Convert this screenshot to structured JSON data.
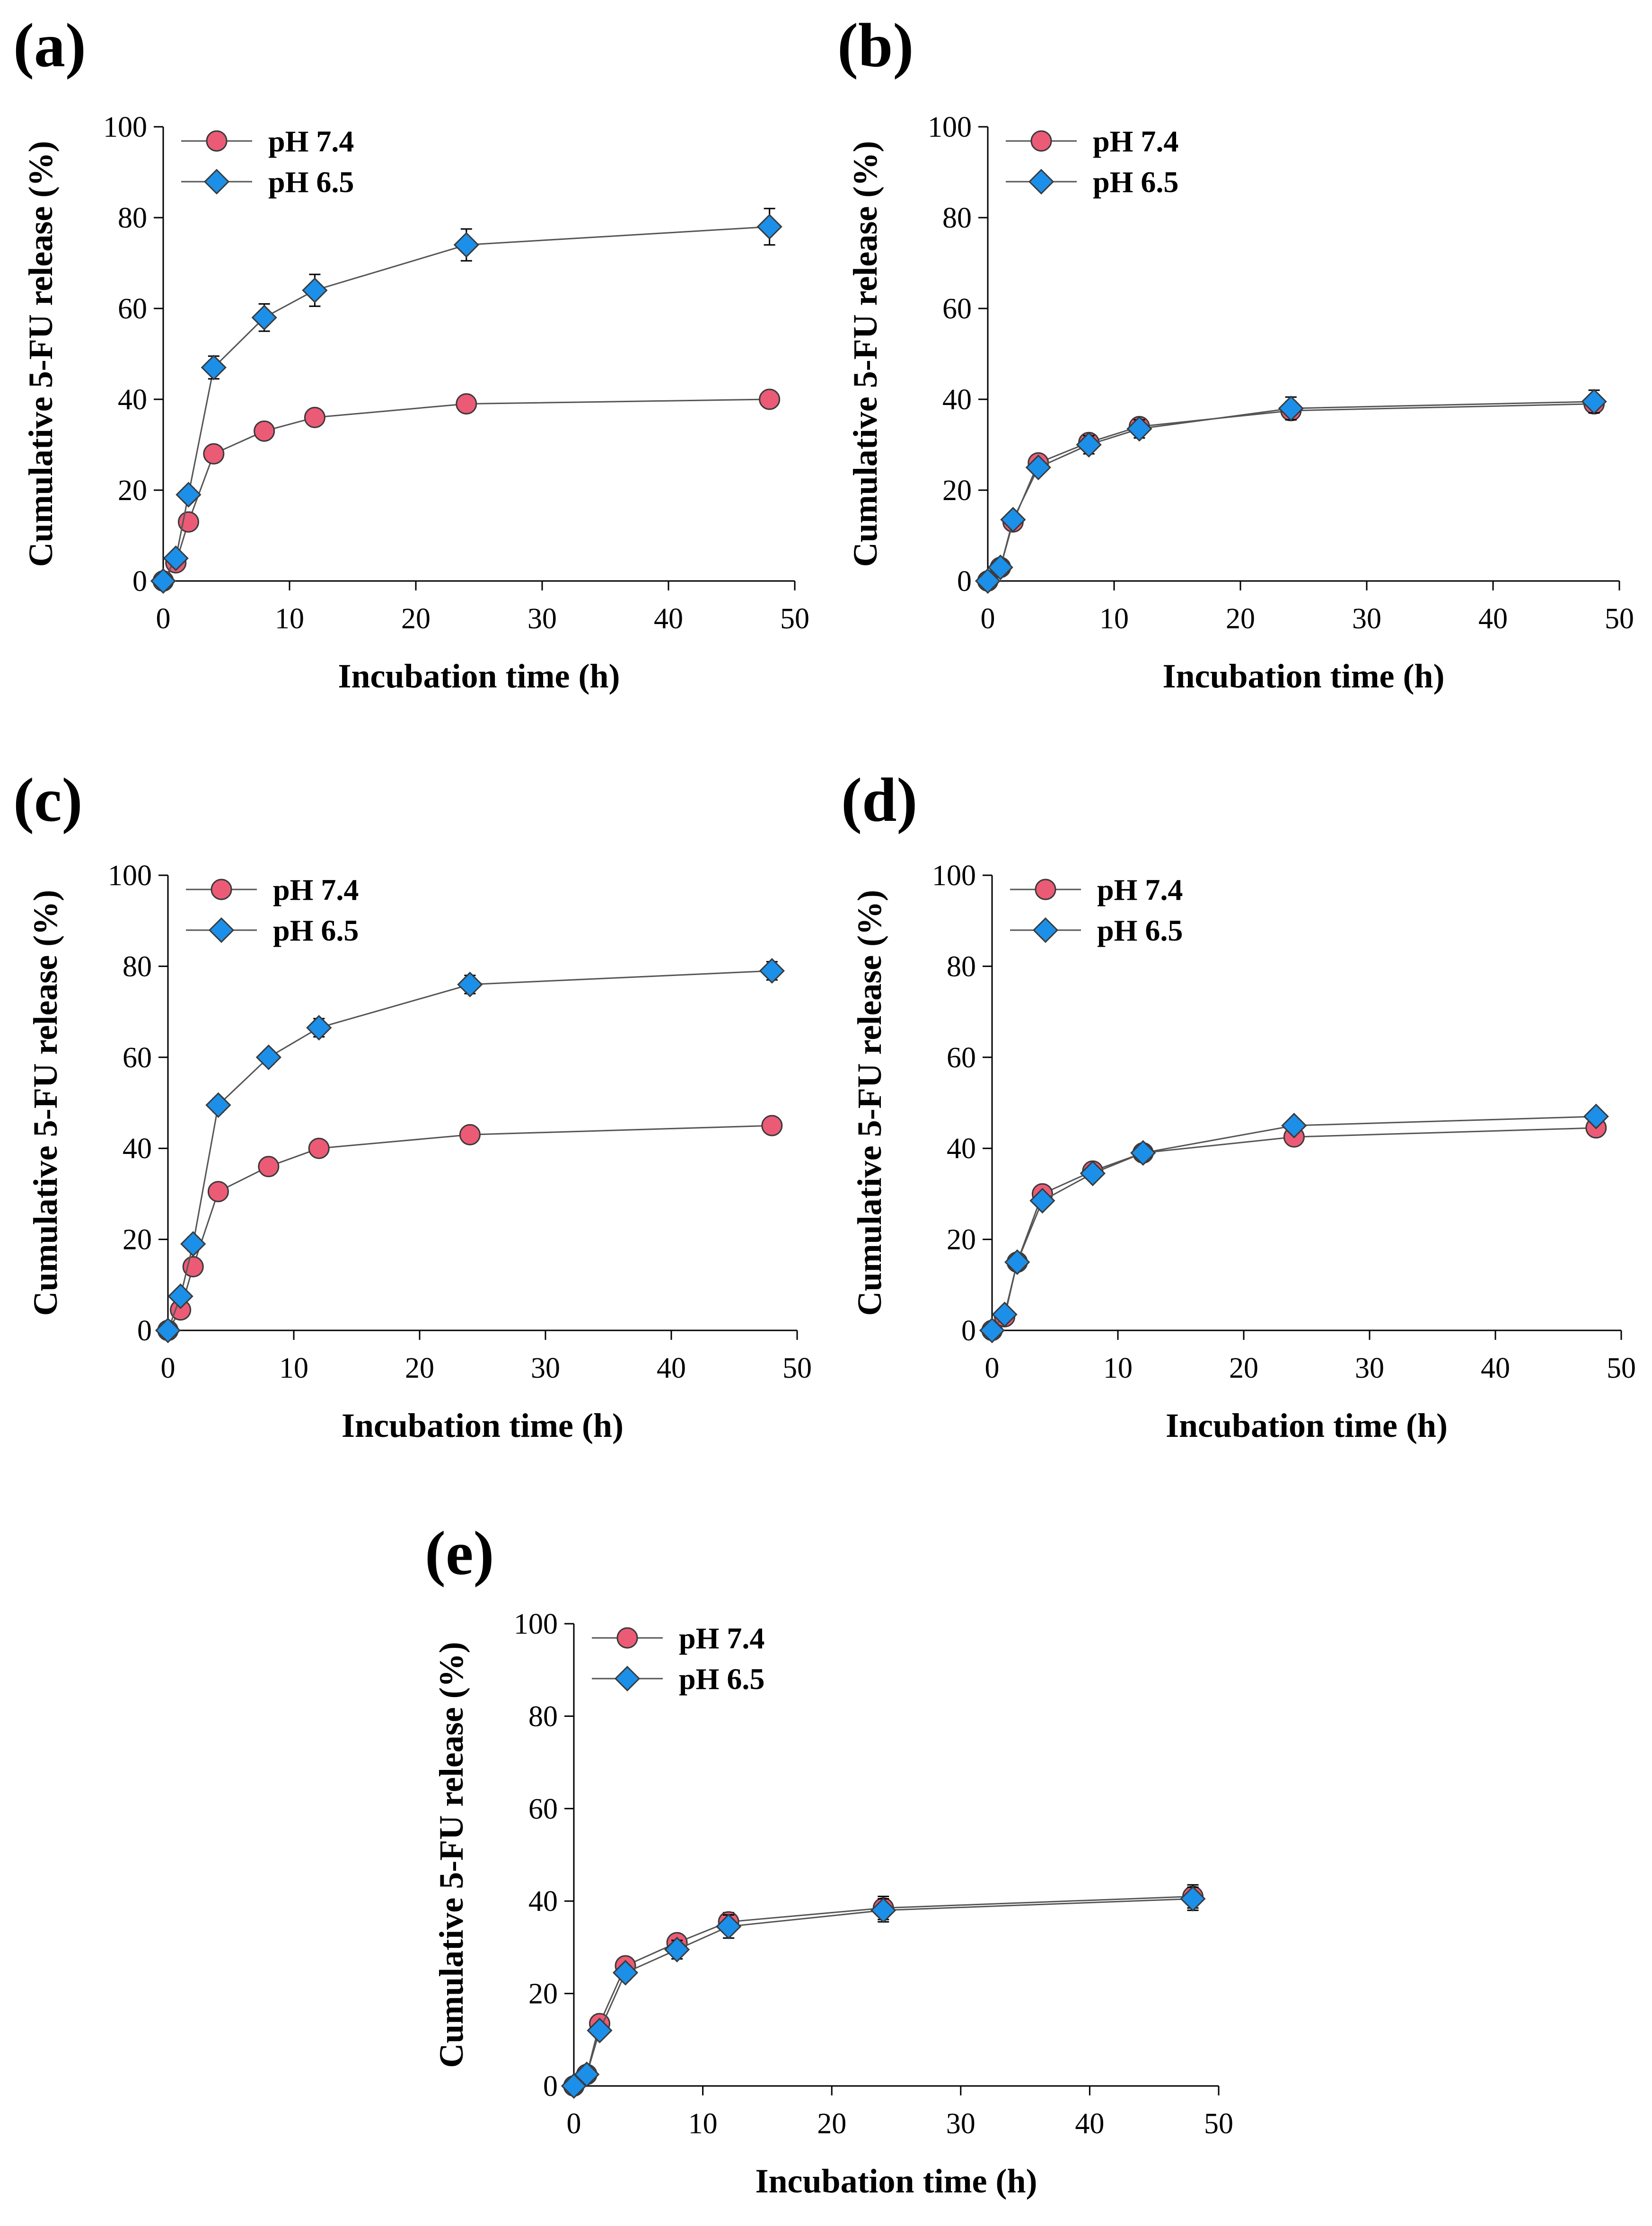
{
  "colors": {
    "ph74_fill": "#EC5B76",
    "ph65_fill": "#1C8FE8",
    "marker_stroke": "#3A3A3A",
    "line": "#555555",
    "axis": "#000000"
  },
  "chart_data": [
    {
      "panel": "(a)",
      "type": "line",
      "xlabel": "Incubation time (h)",
      "ylabel": "Cumulative 5-FU release (%)",
      "xlim": [
        0,
        50
      ],
      "ylim": [
        0,
        100
      ],
      "xticks": [
        "0",
        "10",
        "20",
        "30",
        "40",
        "50"
      ],
      "yticks": [
        "0",
        "20",
        "40",
        "60",
        "80",
        "100"
      ],
      "x": [
        0,
        1,
        2,
        4,
        8,
        12,
        24,
        48
      ],
      "legend_position": "top-left",
      "series": [
        {
          "name": "pH 7.4",
          "marker": "circle",
          "values": [
            0,
            4,
            13,
            28,
            33,
            36,
            39,
            40
          ],
          "errors": [
            0,
            0.8,
            1,
            1,
            1,
            1,
            1,
            1
          ]
        },
        {
          "name": "pH 6.5",
          "marker": "diamond",
          "values": [
            0,
            5,
            19,
            47,
            58,
            64,
            74,
            78
          ],
          "errors": [
            0,
            1,
            1.5,
            2.5,
            3,
            3.5,
            3.5,
            4
          ]
        }
      ]
    },
    {
      "panel": "(b)",
      "type": "line",
      "xlabel": "Incubation time (h)",
      "ylabel": "Cumulative 5-FU release (%)",
      "xlim": [
        0,
        50
      ],
      "ylim": [
        0,
        100
      ],
      "xticks": [
        "0",
        "10",
        "20",
        "30",
        "40",
        "50"
      ],
      "yticks": [
        "0",
        "20",
        "40",
        "60",
        "80",
        "100"
      ],
      "x": [
        0,
        1,
        2,
        4,
        8,
        12,
        24,
        48
      ],
      "legend_position": "top-left",
      "series": [
        {
          "name": "pH 7.4",
          "marker": "circle",
          "values": [
            0,
            3,
            13,
            26,
            30.5,
            34,
            37.5,
            39
          ],
          "errors": [
            0,
            0.8,
            1,
            1,
            1.5,
            1.5,
            2,
            2
          ]
        },
        {
          "name": "pH 6.5",
          "marker": "diamond",
          "values": [
            0,
            3,
            13.5,
            25,
            30,
            33.5,
            38,
            39.5
          ],
          "errors": [
            0,
            0.8,
            1,
            1,
            2,
            2,
            2.5,
            2.5
          ]
        }
      ]
    },
    {
      "panel": "(c)",
      "type": "line",
      "xlabel": "Incubation time (h)",
      "ylabel": "Cumulative 5-FU release (%)",
      "xlim": [
        0,
        50
      ],
      "ylim": [
        0,
        100
      ],
      "xticks": [
        "0",
        "10",
        "20",
        "30",
        "40",
        "50"
      ],
      "yticks": [
        "0",
        "20",
        "40",
        "60",
        "80",
        "100"
      ],
      "x": [
        0,
        1,
        2,
        4,
        8,
        12,
        24,
        48
      ],
      "legend_position": "top-left",
      "series": [
        {
          "name": "pH 7.4",
          "marker": "circle",
          "values": [
            0,
            4.5,
            14,
            30.5,
            36,
            40,
            43,
            45
          ],
          "errors": [
            0,
            0.8,
            1,
            1,
            1,
            1,
            1,
            1
          ]
        },
        {
          "name": "pH 6.5",
          "marker": "diamond",
          "values": [
            0,
            7.5,
            19,
            49.5,
            60,
            66.5,
            76,
            79
          ],
          "errors": [
            0,
            1,
            1.5,
            1.5,
            1.5,
            2,
            2,
            2
          ]
        }
      ]
    },
    {
      "panel": "(d)",
      "type": "line",
      "xlabel": "Incubation time (h)",
      "ylabel": "Cumulative 5-FU release (%)",
      "xlim": [
        0,
        50
      ],
      "ylim": [
        0,
        100
      ],
      "xticks": [
        "0",
        "10",
        "20",
        "30",
        "40",
        "50"
      ],
      "yticks": [
        "0",
        "20",
        "40",
        "60",
        "80",
        "100"
      ],
      "x": [
        0,
        1,
        2,
        4,
        8,
        12,
        24,
        48
      ],
      "legend_position": "top-left",
      "series": [
        {
          "name": "pH 7.4",
          "marker": "circle",
          "values": [
            0,
            3,
            15,
            30,
            35,
            39,
            42.5,
            44.5
          ],
          "errors": [
            0,
            0.8,
            1,
            1,
            1,
            1,
            1,
            1
          ]
        },
        {
          "name": "pH 6.5",
          "marker": "diamond",
          "values": [
            0,
            3.5,
            15,
            28.5,
            34.5,
            39,
            45,
            47
          ],
          "errors": [
            0,
            0.8,
            1,
            1,
            1,
            1,
            1,
            1
          ]
        }
      ]
    },
    {
      "panel": "(e)",
      "type": "line",
      "xlabel": "Incubation time (h)",
      "ylabel": "Cumulative 5-FU release (%)",
      "xlim": [
        0,
        50
      ],
      "ylim": [
        0,
        100
      ],
      "xticks": [
        "0",
        "10",
        "20",
        "30",
        "40",
        "50"
      ],
      "yticks": [
        "0",
        "20",
        "40",
        "60",
        "80",
        "100"
      ],
      "x": [
        0,
        1,
        2,
        4,
        8,
        12,
        24,
        48
      ],
      "legend_position": "top-left",
      "series": [
        {
          "name": "pH 7.4",
          "marker": "circle",
          "values": [
            0,
            2.5,
            13.5,
            26,
            31,
            35.5,
            38.5,
            41
          ],
          "errors": [
            0,
            0.8,
            1,
            1.5,
            1.5,
            2,
            2.5,
            2.5
          ]
        },
        {
          "name": "pH 6.5",
          "marker": "diamond",
          "values": [
            0,
            2.5,
            12,
            24.5,
            29.5,
            34.5,
            38,
            40.5
          ],
          "errors": [
            0,
            0.8,
            1,
            1.5,
            2,
            2.5,
            2.5,
            2.5
          ]
        }
      ]
    }
  ]
}
